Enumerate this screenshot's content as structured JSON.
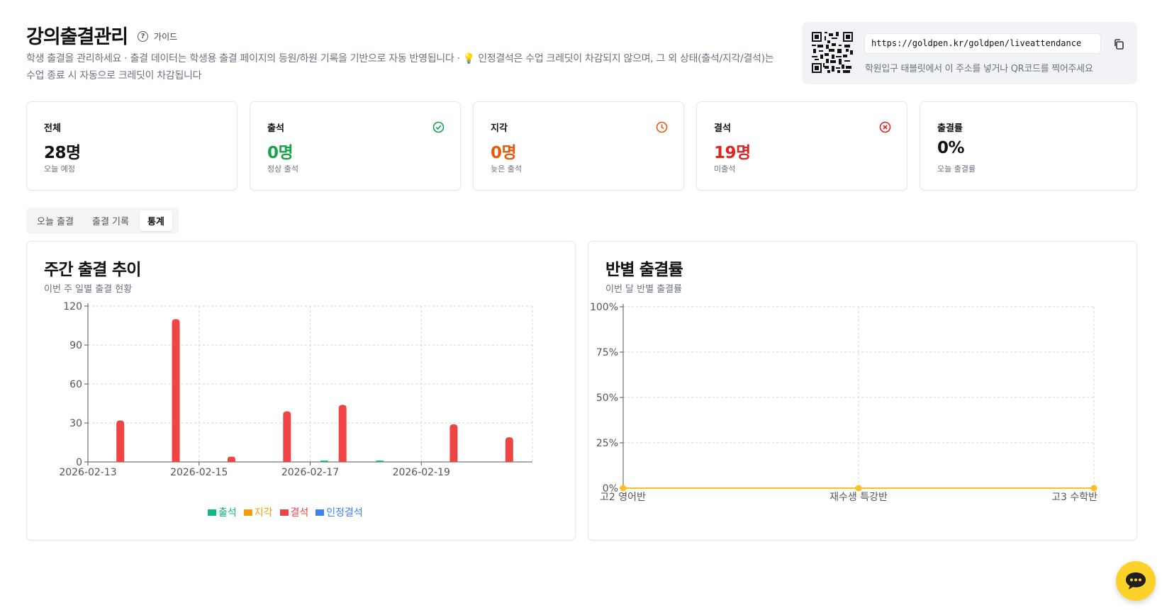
{
  "header": {
    "title": "강의출결관리",
    "guide_label": "가이드",
    "description": "학생 출결을 관리하세요 · 출결 데이터는 학생용 출결 페이지의 등원/하원 기록을 기반으로 자동 반영됩니다 · 💡 인정결석은 수업 크레딧이 차감되지 않으며, 그 외 상태(출석/지각/결석)는 수업 종료 시 자동으로 크레딧이 차감됩니다"
  },
  "qr_panel": {
    "url": "https://goldpen.kr/goldpen/liveattendance",
    "hint": "학원입구 태블릿에서 이 주소를 넣거나 QR코드를 찍어주세요"
  },
  "stats": [
    {
      "label": "전체",
      "value": "28명",
      "sub": "오늘 예정",
      "color": "#111111",
      "icon": ""
    },
    {
      "label": "출석",
      "value": "0명",
      "sub": "정상 출석",
      "color": "#16a34a",
      "icon": "check-circle-icon"
    },
    {
      "label": "지각",
      "value": "0명",
      "sub": "늦은 출석",
      "color": "#ea580c",
      "icon": "clock-icon"
    },
    {
      "label": "결석",
      "value": "19명",
      "sub": "미출석",
      "color": "#dc2626",
      "icon": "x-circle-icon"
    },
    {
      "label": "출결률",
      "value": "0%",
      "sub": "오늘 출결률",
      "color": "#111111",
      "icon": ""
    }
  ],
  "tabs": [
    {
      "label": "오늘 출결",
      "active": false
    },
    {
      "label": "출결 기록",
      "active": false
    },
    {
      "label": "통계",
      "active": true
    }
  ],
  "weekly_panel": {
    "title": "주간 출결 추이",
    "subtitle": "이번 주 일별 출결 현황"
  },
  "class_panel": {
    "title": "반별 출결률",
    "subtitle": "이번 달 반별 출결률"
  },
  "chart_data": [
    {
      "type": "bar",
      "x": [
        "2026-02-13",
        "2026-02-14",
        "2026-02-15",
        "2026-02-16",
        "2026-02-17",
        "2026-02-18",
        "2026-02-19",
        "2026-02-20"
      ],
      "x_tick_labels": [
        "2026-02-13",
        "2026-02-15",
        "2026-02-17",
        "2026-02-19"
      ],
      "series": [
        {
          "name": "출석",
          "color": "#10b981",
          "values": [
            0,
            0,
            0,
            0,
            1,
            1,
            0,
            0
          ]
        },
        {
          "name": "지각",
          "color": "#f59e0b",
          "values": [
            0,
            0,
            0,
            0,
            0,
            0,
            0,
            0
          ]
        },
        {
          "name": "결석",
          "color": "#ef4444",
          "values": [
            32,
            110,
            4,
            39,
            44,
            0,
            29,
            19
          ]
        },
        {
          "name": "인정결석",
          "color": "#3b82f6",
          "values": [
            0,
            0,
            0,
            0,
            0,
            0,
            0,
            0
          ]
        }
      ],
      "yticks": [
        0,
        30,
        60,
        90,
        120
      ],
      "ylim": [
        0,
        120
      ],
      "grid": true,
      "legend": "bottom"
    },
    {
      "type": "line",
      "categories": [
        "고2 영어반",
        "재수생 특강반",
        "고3 수학반"
      ],
      "series": [
        {
          "color": "#fbbf24",
          "values": [
            0,
            0,
            0
          ]
        }
      ],
      "yticks": [
        "0%",
        "25%",
        "50%",
        "75%",
        "100%"
      ],
      "ylim": [
        0,
        100
      ],
      "grid": true
    }
  ]
}
